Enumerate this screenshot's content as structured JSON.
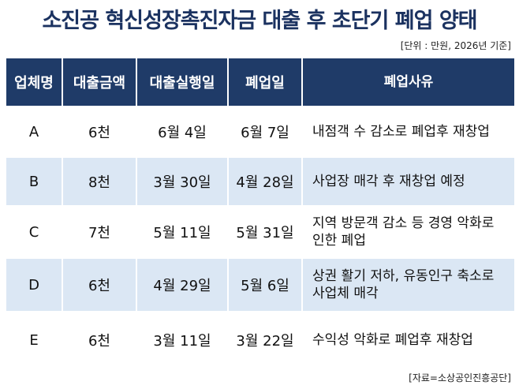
{
  "header": {
    "title": "소진공 혁신성장촉진자금 대출 후 초단기 폐업 양태",
    "unit": "[단위 : 만원, 2026년 기준]"
  },
  "table": {
    "columns": [
      "업체명",
      "대출금액",
      "대출실행일",
      "폐업일",
      "폐업사유"
    ],
    "rows": [
      [
        "A",
        "6천",
        "6월 4일",
        "6월 7일",
        "내점객 수 감소로 폐업후 재창업"
      ],
      [
        "B",
        "8천",
        "3월 30일",
        "4월 28일",
        "사업장 매각 후 재창업 예정"
      ],
      [
        "C",
        "7천",
        "5월 11일",
        "5월 31일",
        "지역 방문객 감소 등 경영 악화로 인한 폐업"
      ],
      [
        "D",
        "6천",
        "4월 29일",
        "5월 6일",
        "상권 활기 저하, 유동인구 축소로 사업체 매각"
      ],
      [
        "E",
        "6천",
        "3월 11일",
        "3월 22일",
        "수익성 악화로 폐업후 재창업"
      ]
    ]
  },
  "footer": {
    "source": "[자료=소상공인진흥공단]"
  }
}
